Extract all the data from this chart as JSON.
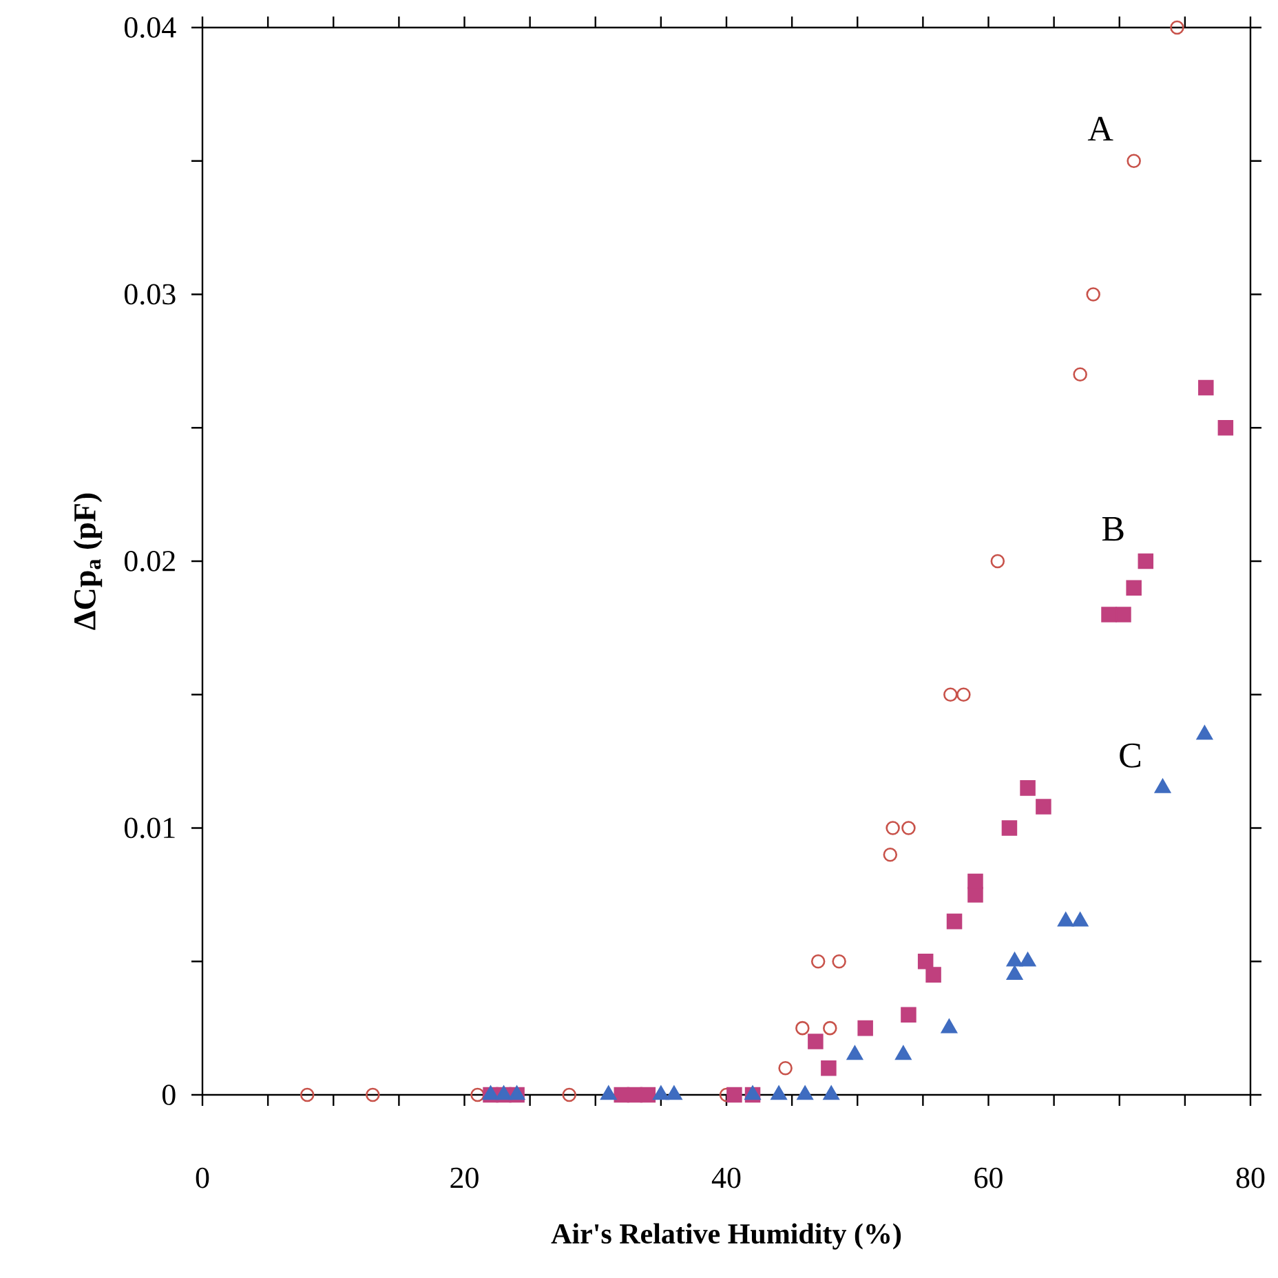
{
  "chart_data": {
    "type": "scatter",
    "xlabel": "Air's Relative Humidity (%)",
    "ylabel": "ΔCp$_{a}$ (pF)",
    "xlim": [
      0,
      80
    ],
    "ylim": [
      0,
      0.04
    ],
    "xticks": [
      0,
      {
        "value": 5,
        "label": null
      },
      {
        "value": 10,
        "label": null
      },
      {
        "value": 15,
        "label": null
      },
      20,
      {
        "value": 25,
        "label": null
      },
      {
        "value": 30,
        "label": null
      },
      {
        "value": 35,
        "label": null
      },
      40,
      {
        "value": 45,
        "label": null
      },
      {
        "value": 50,
        "label": null
      },
      {
        "value": 55,
        "label": null
      },
      60,
      {
        "value": 65,
        "label": null
      },
      {
        "value": 70,
        "label": null
      },
      {
        "value": 75,
        "label": null
      },
      80
    ],
    "yticks": [
      0,
      {
        "value": 0.005,
        "label": null
      },
      0.01,
      {
        "value": 0.015,
        "label": null
      },
      0.02,
      {
        "value": 0.025,
        "label": null
      },
      0.03,
      {
        "value": 0.035,
        "label": null
      },
      0.04
    ],
    "grid": false,
    "legend": false,
    "series": [
      {
        "name": "A",
        "color": "#c8524a",
        "marker": "circle",
        "x": [
          8,
          13,
          21,
          28,
          40,
          44.5,
          45.8,
          47.9,
          47,
          48.6,
          52.5,
          52.7,
          53.9,
          57.1,
          58.1,
          60.7,
          67,
          68,
          71.1,
          74.4
        ],
        "values": [
          0,
          0,
          0,
          0,
          0,
          0.001,
          0.0025,
          0.0025,
          0.005,
          0.005,
          0.009,
          0.01,
          0.01,
          0.015,
          0.015,
          0.02,
          0.027,
          0.03,
          0.035,
          0.04
        ]
      },
      {
        "name": "B",
        "color": "#c0407e",
        "marker": "square",
        "x": [
          22,
          23,
          24,
          32,
          33,
          34,
          40.6,
          42,
          46.8,
          47.8,
          50.6,
          53.9,
          55.2,
          55.8,
          57.4,
          59,
          59,
          61.6,
          63,
          64.2,
          69.2,
          70.3,
          71.1,
          72,
          76.6,
          78.1
        ],
        "values": [
          0,
          0,
          0,
          0,
          0,
          0,
          0,
          0,
          0.002,
          0.001,
          0.0025,
          0.003,
          0.005,
          0.0045,
          0.0065,
          0.008,
          0.0075,
          0.01,
          0.0115,
          0.0108,
          0.018,
          0.018,
          0.019,
          0.02,
          0.0265,
          0.025
        ]
      },
      {
        "name": "C",
        "color": "#3f6cc0",
        "marker": "triangle",
        "x": [
          22,
          23,
          24,
          31,
          35,
          36,
          42,
          44,
          46,
          48,
          49.8,
          53.5,
          57,
          62,
          62,
          63,
          65.9,
          67,
          73.3,
          76.5
        ],
        "values": [
          0,
          0,
          0,
          0,
          0,
          0,
          0,
          0,
          0,
          0,
          0.0015,
          0.0015,
          0.0025,
          0.005,
          0.0045,
          0.005,
          0.0065,
          0.0065,
          0.0115,
          0.0135
        ]
      }
    ]
  }
}
